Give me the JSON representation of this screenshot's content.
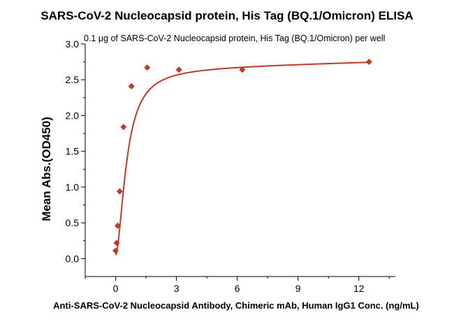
{
  "chart_data": {
    "type": "scatter",
    "title": "SARS-CoV-2 Nucleocapsid protein, His Tag (BQ.1/Omicron) ELISA",
    "subtitle": "0.1 μg of SARS-CoV-2 Nucleocapsid protein, His Tag (BQ.1/Omicron) per well",
    "xlabel": "Anti-SARS-CoV-2 Nucleocapsid Antibody, Chimeric mAb, Human IgG1 Conc. (ng/mL)",
    "ylabel": "Mean Abs.(OD450)",
    "xlim": [
      -1.5,
      13.8
    ],
    "ylim": [
      -0.25,
      3.0
    ],
    "xticks": [
      "0",
      "3",
      "6",
      "9",
      "12"
    ],
    "xtick_values": [
      0,
      3,
      6,
      9,
      12
    ],
    "yticks": [
      "0.0",
      "0.5",
      "1.0",
      "1.5",
      "2.0",
      "2.5",
      "3.0"
    ],
    "ytick_values": [
      0.0,
      0.5,
      1.0,
      1.5,
      2.0,
      2.5,
      3.0
    ],
    "grid": false,
    "series": [
      {
        "marker": "diamond",
        "color": "#c0392b",
        "x": [
          0.0,
          0.05,
          0.1,
          0.2,
          0.39,
          0.78,
          1.56,
          3.125,
          6.25,
          12.5
        ],
        "y": [
          0.11,
          0.22,
          0.46,
          0.94,
          1.84,
          2.41,
          2.67,
          2.64,
          2.64,
          2.75
        ]
      }
    ],
    "fit_curve_color": "#c0392b"
  }
}
